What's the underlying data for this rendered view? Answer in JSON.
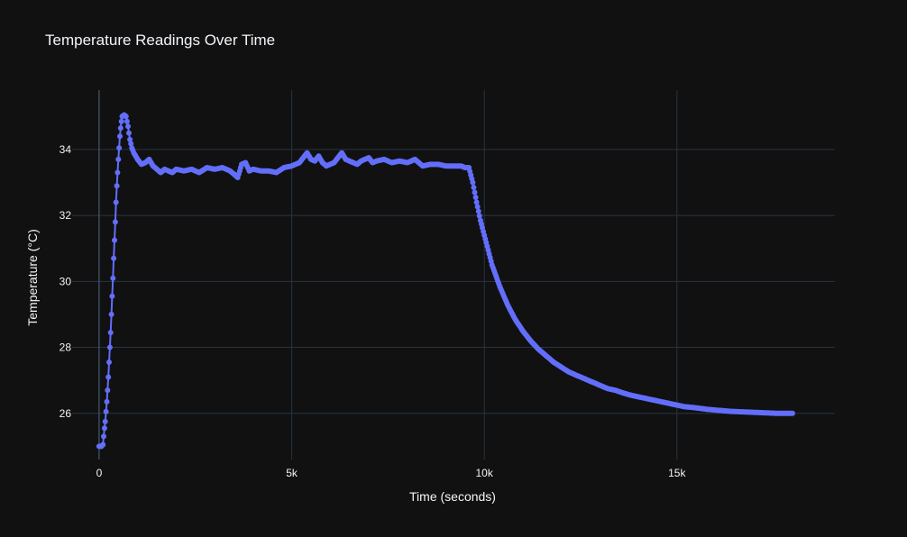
{
  "chart_data": {
    "type": "line",
    "mode": "lines+markers",
    "title": "Temperature Readings Over Time",
    "xlabel": "Time (seconds)",
    "ylabel": "Temperature (°C)",
    "xlim": [
      -700,
      19100
    ],
    "ylim": [
      24.6,
      35.8
    ],
    "x_ticks": [
      0,
      5000,
      10000,
      15000
    ],
    "x_tick_labels": [
      "0",
      "5k",
      "10k",
      "15k"
    ],
    "y_ticks": [
      26,
      28,
      30,
      32,
      34
    ],
    "y_tick_labels": [
      "26",
      "28",
      "30",
      "32",
      "34"
    ],
    "grid": true,
    "legend": "none",
    "colors": {
      "background": "#111111",
      "series": "#636efa",
      "text": "#f2f5fa",
      "grid": "#283442"
    },
    "series": [
      {
        "points": [
          [
            0,
            25.0
          ],
          [
            60,
            25.0
          ],
          [
            100,
            25.05
          ],
          [
            120,
            25.3
          ],
          [
            140,
            25.55
          ],
          [
            160,
            25.75
          ],
          [
            180,
            26.05
          ],
          [
            200,
            26.35
          ],
          [
            220,
            26.7
          ],
          [
            240,
            27.1
          ],
          [
            260,
            27.55
          ],
          [
            280,
            28.0
          ],
          [
            300,
            28.45
          ],
          [
            320,
            29.0
          ],
          [
            340,
            29.55
          ],
          [
            360,
            30.1
          ],
          [
            380,
            30.7
          ],
          [
            400,
            31.25
          ],
          [
            420,
            31.8
          ],
          [
            440,
            32.4
          ],
          [
            460,
            32.9
          ],
          [
            480,
            33.3
          ],
          [
            500,
            33.7
          ],
          [
            520,
            34.05
          ],
          [
            540,
            34.4
          ],
          [
            560,
            34.65
          ],
          [
            580,
            34.85
          ],
          [
            600,
            35.0
          ],
          [
            650,
            35.05
          ],
          [
            700,
            35.0
          ],
          [
            750,
            34.7
          ],
          [
            800,
            34.3
          ],
          [
            850,
            34.05
          ],
          [
            900,
            33.9
          ],
          [
            1000,
            33.7
          ],
          [
            1100,
            33.55
          ],
          [
            1200,
            33.6
          ],
          [
            1300,
            33.7
          ],
          [
            1400,
            33.5
          ],
          [
            1500,
            33.4
          ],
          [
            1600,
            33.3
          ],
          [
            1700,
            33.4
          ],
          [
            1800,
            33.35
          ],
          [
            1900,
            33.3
          ],
          [
            2000,
            33.4
          ],
          [
            2200,
            33.35
          ],
          [
            2400,
            33.4
          ],
          [
            2600,
            33.3
          ],
          [
            2800,
            33.45
          ],
          [
            3000,
            33.4
          ],
          [
            3200,
            33.45
          ],
          [
            3400,
            33.35
          ],
          [
            3500,
            33.25
          ],
          [
            3600,
            33.15
          ],
          [
            3700,
            33.55
          ],
          [
            3800,
            33.6
          ],
          [
            3900,
            33.35
          ],
          [
            4000,
            33.4
          ],
          [
            4200,
            33.35
          ],
          [
            4400,
            33.35
          ],
          [
            4600,
            33.3
          ],
          [
            4800,
            33.45
          ],
          [
            5000,
            33.5
          ],
          [
            5200,
            33.6
          ],
          [
            5300,
            33.75
          ],
          [
            5400,
            33.9
          ],
          [
            5500,
            33.7
          ],
          [
            5600,
            33.65
          ],
          [
            5700,
            33.8
          ],
          [
            5800,
            33.6
          ],
          [
            5900,
            33.5
          ],
          [
            6000,
            33.55
          ],
          [
            6100,
            33.6
          ],
          [
            6200,
            33.75
          ],
          [
            6300,
            33.9
          ],
          [
            6400,
            33.7
          ],
          [
            6500,
            33.65
          ],
          [
            6600,
            33.6
          ],
          [
            6700,
            33.55
          ],
          [
            6800,
            33.65
          ],
          [
            6900,
            33.7
          ],
          [
            7000,
            33.75
          ],
          [
            7100,
            33.6
          ],
          [
            7200,
            33.65
          ],
          [
            7400,
            33.7
          ],
          [
            7600,
            33.6
          ],
          [
            7800,
            33.65
          ],
          [
            8000,
            33.6
          ],
          [
            8200,
            33.7
          ],
          [
            8400,
            33.5
          ],
          [
            8600,
            33.55
          ],
          [
            8800,
            33.55
          ],
          [
            9000,
            33.5
          ],
          [
            9200,
            33.5
          ],
          [
            9400,
            33.5
          ],
          [
            9500,
            33.45
          ],
          [
            9600,
            33.45
          ],
          [
            9700,
            33.0
          ],
          [
            9800,
            32.4
          ],
          [
            9900,
            31.85
          ],
          [
            10000,
            31.4
          ],
          [
            10200,
            30.5
          ],
          [
            10400,
            29.85
          ],
          [
            10600,
            29.3
          ],
          [
            10800,
            28.85
          ],
          [
            11000,
            28.5
          ],
          [
            11200,
            28.2
          ],
          [
            11400,
            27.95
          ],
          [
            11600,
            27.75
          ],
          [
            11800,
            27.55
          ],
          [
            12000,
            27.4
          ],
          [
            12200,
            27.25
          ],
          [
            12400,
            27.15
          ],
          [
            12600,
            27.05
          ],
          [
            12800,
            26.95
          ],
          [
            13000,
            26.85
          ],
          [
            13200,
            26.75
          ],
          [
            13400,
            26.7
          ],
          [
            13600,
            26.62
          ],
          [
            13800,
            26.55
          ],
          [
            14000,
            26.5
          ],
          [
            14200,
            26.45
          ],
          [
            14400,
            26.4
          ],
          [
            14600,
            26.35
          ],
          [
            14800,
            26.3
          ],
          [
            15000,
            26.25
          ],
          [
            15200,
            26.2
          ],
          [
            15400,
            26.18
          ],
          [
            15600,
            26.15
          ],
          [
            15800,
            26.12
          ],
          [
            16000,
            26.1
          ],
          [
            16200,
            26.08
          ],
          [
            16400,
            26.06
          ],
          [
            16600,
            26.05
          ],
          [
            16800,
            26.04
          ],
          [
            17000,
            26.03
          ],
          [
            17200,
            26.02
          ],
          [
            17400,
            26.01
          ],
          [
            17600,
            26.0
          ],
          [
            17800,
            26.0
          ],
          [
            18000,
            26.0
          ]
        ]
      }
    ]
  }
}
